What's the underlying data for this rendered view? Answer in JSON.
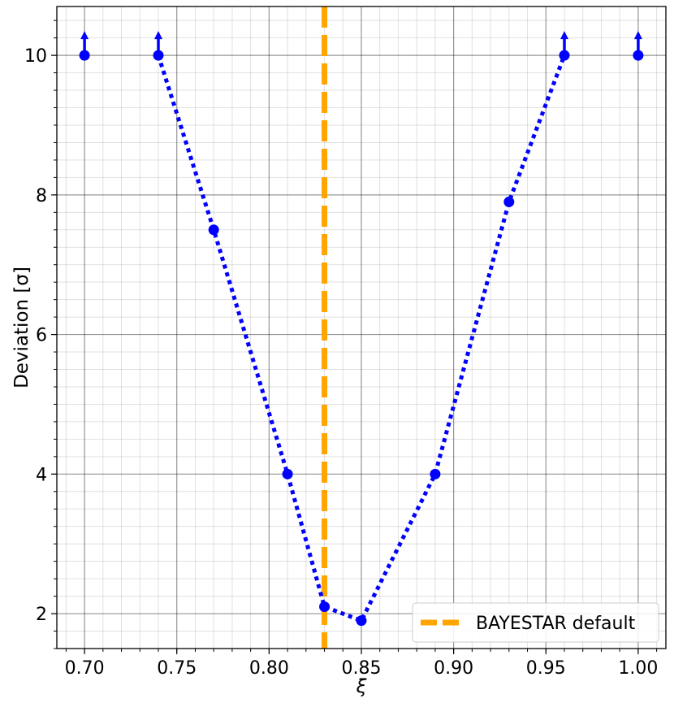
{
  "chart_data": {
    "type": "scatter",
    "title": "",
    "xlabel": "ξ",
    "ylabel": "Deviation [σ]",
    "xlim": [
      0.685,
      1.015
    ],
    "ylim": [
      1.5,
      10.7
    ],
    "x_ticks": [
      0.7,
      0.75,
      0.8,
      0.85,
      0.9,
      0.95,
      1.0
    ],
    "x_tick_labels": [
      "0.70",
      "0.75",
      "0.80",
      "0.85",
      "0.90",
      "0.95",
      "1.00"
    ],
    "y_ticks": [
      2,
      4,
      6,
      8,
      10
    ],
    "y_tick_labels": [
      "2",
      "4",
      "6",
      "8",
      "10"
    ],
    "grid": "major and minor",
    "legend_position": "lower-right",
    "series": [
      {
        "color": "#0000ff",
        "style": "dotted-line-with-markers",
        "points": [
          {
            "x": 0.7,
            "y": 10.0,
            "lower_limit": true,
            "connected": false
          },
          {
            "x": 0.74,
            "y": 10.0,
            "lower_limit": true,
            "connected": true
          },
          {
            "x": 0.77,
            "y": 7.5,
            "lower_limit": false,
            "connected": true
          },
          {
            "x": 0.81,
            "y": 4.0,
            "lower_limit": false,
            "connected": true
          },
          {
            "x": 0.83,
            "y": 2.1,
            "lower_limit": false,
            "connected": true
          },
          {
            "x": 0.85,
            "y": 1.9,
            "lower_limit": false,
            "connected": true
          },
          {
            "x": 0.89,
            "y": 4.0,
            "lower_limit": false,
            "connected": true
          },
          {
            "x": 0.93,
            "y": 7.9,
            "lower_limit": false,
            "connected": true
          },
          {
            "x": 0.96,
            "y": 10.0,
            "lower_limit": true,
            "connected": true
          },
          {
            "x": 1.0,
            "y": 10.0,
            "lower_limit": true,
            "connected": false
          }
        ]
      }
    ],
    "reference_line": {
      "name": "BAYESTAR default",
      "x": 0.83,
      "color": "#ffa500",
      "style": "dashed"
    },
    "legend": [
      "BAYESTAR default"
    ]
  }
}
